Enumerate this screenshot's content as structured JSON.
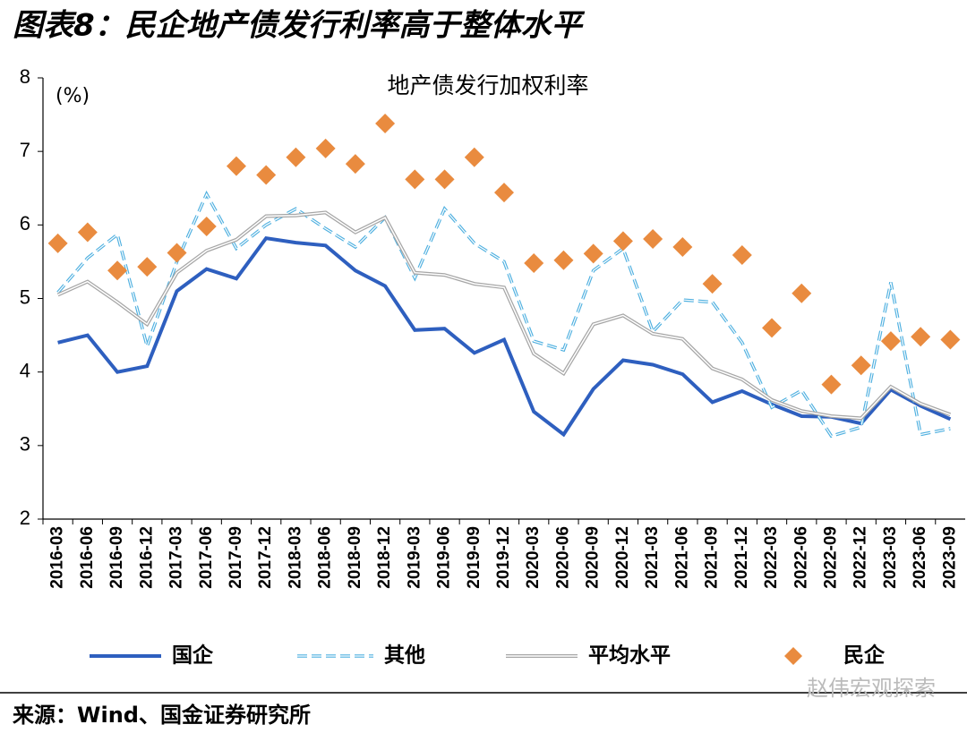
{
  "heading": "图表8：民企地产债发行利率高于整体水平",
  "source": "来源：Wind、国金证券研究所",
  "watermark": "赵伟宏观探索",
  "chart_data": {
    "type": "line",
    "title": "地产债发行加权利率",
    "y_label": "(%)",
    "categories": [
      "2016-03",
      "2016-06",
      "2016-09",
      "2016-12",
      "2017-03",
      "2017-06",
      "2017-09",
      "2017-12",
      "2018-03",
      "2018-06",
      "2018-09",
      "2018-12",
      "2019-03",
      "2019-06",
      "2019-09",
      "2019-12",
      "2020-03",
      "2020-06",
      "2020-09",
      "2020-12",
      "2021-03",
      "2021-06",
      "2021-09",
      "2021-12",
      "2022-03",
      "2022-06",
      "2022-09",
      "2022-12",
      "2023-03",
      "2023-06",
      "2023-09"
    ],
    "series": [
      {
        "name": "国企",
        "color": "#2e5fbf",
        "style": "solid",
        "values": [
          4.4,
          4.5,
          4.0,
          4.08,
          5.1,
          5.4,
          5.27,
          5.82,
          5.76,
          5.72,
          5.38,
          5.17,
          4.57,
          4.59,
          4.26,
          4.44,
          3.46,
          3.15,
          3.77,
          4.16,
          4.1,
          3.97,
          3.59,
          3.74,
          3.56,
          3.4,
          3.39,
          3.3,
          3.76,
          3.54,
          3.36
        ]
      },
      {
        "name": "其他",
        "color": "#4fb0e0",
        "style": "dashed",
        "values": [
          5.08,
          5.55,
          5.87,
          4.35,
          5.5,
          6.42,
          5.68,
          6.0,
          6.22,
          5.95,
          5.7,
          6.1,
          5.28,
          6.22,
          5.75,
          5.5,
          4.42,
          4.3,
          5.38,
          5.68,
          4.55,
          4.98,
          4.95,
          4.4,
          3.52,
          3.75,
          3.13,
          3.25,
          5.22,
          3.15,
          3.23
        ]
      },
      {
        "name": "平均水平",
        "color": "#a6a6a6",
        "style": "double",
        "values": [
          5.05,
          5.23,
          4.95,
          4.65,
          5.35,
          5.65,
          5.8,
          6.12,
          6.13,
          6.17,
          5.9,
          6.1,
          5.35,
          5.32,
          5.2,
          5.15,
          4.25,
          3.98,
          4.65,
          4.77,
          4.52,
          4.45,
          4.05,
          3.9,
          3.62,
          3.47,
          3.4,
          3.37,
          3.8,
          3.57,
          3.42
        ]
      },
      {
        "name": "民企",
        "color": "#e98b3f",
        "style": "diamond",
        "values": [
          5.75,
          5.9,
          5.38,
          5.43,
          5.62,
          5.98,
          6.8,
          6.68,
          6.92,
          7.04,
          6.83,
          7.38,
          6.62,
          6.62,
          6.92,
          6.44,
          5.48,
          5.52,
          5.61,
          5.78,
          5.81,
          5.7,
          5.2,
          5.59,
          4.6,
          5.07,
          3.83,
          4.09,
          4.42,
          4.48,
          4.44
        ]
      }
    ],
    "ylim": [
      2,
      8
    ],
    "yticks": [
      2,
      3,
      4,
      5,
      6,
      7,
      8
    ],
    "grid": false
  }
}
